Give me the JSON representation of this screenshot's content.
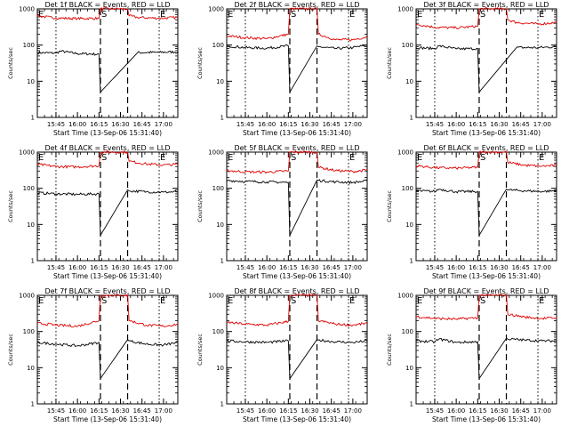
{
  "figure": {
    "colors": {
      "background": "#ffffff",
      "events": "#000000",
      "lld": "#e00000",
      "axes": "#000000"
    }
  },
  "chart_data": [
    {
      "type": "line",
      "title": "Det 1f BLACK = Events, RED = LLD",
      "xlabel": "Start Time (13-Sep-06 15:31:40)",
      "ylabel": "Counts/sec",
      "yscale": "log",
      "xlim": [
        "15:32",
        "17:10"
      ],
      "ylim": [
        1,
        1000
      ],
      "xticks": [
        "15:45",
        "16:00",
        "16:15",
        "16:30",
        "16:45",
        "17:00"
      ],
      "yticks": [
        "1",
        "10",
        "100",
        "1000"
      ],
      "markers": [
        "E",
        "S",
        "E"
      ],
      "grid": false,
      "series": [
        {
          "values": [
            [
              15.533,
              62
            ],
            [
              15.75,
              60
            ],
            [
              15.8,
              68
            ],
            [
              16.0,
              58
            ],
            [
              16.25,
              56
            ],
            [
              16.267,
              5
            ],
            [
              16.7,
              62
            ],
            [
              16.95,
              63
            ],
            [
              17.167,
              65
            ]
          ]
        },
        {
          "values": [
            [
              15.533,
              640
            ],
            [
              15.75,
              560
            ],
            [
              16.0,
              540
            ],
            [
              16.25,
              550
            ],
            [
              16.267,
              1000
            ],
            [
              16.583,
              1000
            ],
            [
              16.6,
              640
            ],
            [
              16.7,
              580
            ],
            [
              16.95,
              550
            ],
            [
              17.167,
              580
            ]
          ]
        }
      ]
    },
    {
      "type": "line",
      "title": "Det 2f BLACK = Events, RED = LLD",
      "xlabel": "Start Time (13-Sep-06 15:31:40)",
      "ylabel": "Counts/sec",
      "yscale": "log",
      "xlim": [
        "15:32",
        "17:10"
      ],
      "ylim": [
        1,
        1000
      ],
      "xticks": [
        "15:45",
        "16:00",
        "16:15",
        "16:30",
        "16:45",
        "17:00"
      ],
      "yticks": [
        "1",
        "10",
        "100",
        "1000"
      ],
      "markers": [
        "E",
        "S",
        "E"
      ],
      "grid": false,
      "series": [
        {
          "values": [
            [
              15.533,
              95
            ],
            [
              15.75,
              85
            ],
            [
              16.0,
              82
            ],
            [
              16.25,
              95
            ],
            [
              16.267,
              5
            ],
            [
              16.583,
              95
            ],
            [
              16.6,
              90
            ],
            [
              16.8,
              80
            ],
            [
              17.0,
              85
            ],
            [
              17.167,
              100
            ]
          ]
        },
        {
          "values": [
            [
              15.533,
              180
            ],
            [
              15.75,
              160
            ],
            [
              16.0,
              150
            ],
            [
              16.25,
              200
            ],
            [
              16.267,
              1000
            ],
            [
              16.583,
              1000
            ],
            [
              16.6,
              200
            ],
            [
              16.8,
              140
            ],
            [
              17.0,
              140
            ],
            [
              17.167,
              170
            ]
          ]
        }
      ]
    },
    {
      "type": "line",
      "title": "Det 3f BLACK = Events, RED = LLD",
      "xlabel": "Start Time (13-Sep-06 15:31:40)",
      "ylabel": "Counts/sec",
      "yscale": "log",
      "xlim": [
        "15:32",
        "17:10"
      ],
      "ylim": [
        1,
        1000
      ],
      "xticks": [
        "15:45",
        "16:00",
        "16:15",
        "16:30",
        "16:45",
        "17:00"
      ],
      "yticks": [
        "1",
        "10",
        "100",
        "1000"
      ],
      "markers": [
        "E",
        "S",
        "E"
      ],
      "grid": false,
      "series": [
        {
          "values": [
            [
              15.533,
              85
            ],
            [
              15.75,
              80
            ],
            [
              15.8,
              95
            ],
            [
              16.0,
              78
            ],
            [
              16.25,
              80
            ],
            [
              16.267,
              5
            ],
            [
              16.7,
              85
            ],
            [
              16.95,
              85
            ],
            [
              17.167,
              90
            ]
          ]
        },
        {
          "values": [
            [
              15.533,
              380
            ],
            [
              15.75,
              310
            ],
            [
              16.0,
              300
            ],
            [
              16.25,
              330
            ],
            [
              16.267,
              1000
            ],
            [
              16.583,
              1000
            ],
            [
              16.6,
              500
            ],
            [
              16.7,
              420
            ],
            [
              16.95,
              380
            ],
            [
              17.167,
              420
            ]
          ]
        }
      ]
    },
    {
      "type": "line",
      "title": "Det 4f BLACK = Events, RED = LLD",
      "xlabel": "Start Time (13-Sep-06 15:31:40)",
      "ylabel": "Counts/sec",
      "yscale": "log",
      "xlim": [
        "15:32",
        "17:10"
      ],
      "ylim": [
        1,
        1000
      ],
      "xticks": [
        "15:45",
        "16:00",
        "16:15",
        "16:30",
        "16:45",
        "17:00"
      ],
      "yticks": [
        "1",
        "10",
        "100",
        "1000"
      ],
      "markers": [
        "E",
        "S",
        "E"
      ],
      "grid": false,
      "series": [
        {
          "values": [
            [
              15.533,
              75
            ],
            [
              15.75,
              70
            ],
            [
              16.0,
              68
            ],
            [
              16.25,
              70
            ],
            [
              16.267,
              5
            ],
            [
              16.583,
              90
            ],
            [
              16.6,
              85
            ],
            [
              16.8,
              80
            ],
            [
              17.0,
              78
            ],
            [
              17.167,
              80
            ]
          ]
        },
        {
          "values": [
            [
              15.533,
              460
            ],
            [
              15.75,
              400
            ],
            [
              16.0,
              390
            ],
            [
              16.25,
              420
            ],
            [
              16.267,
              1000
            ],
            [
              16.583,
              1000
            ],
            [
              16.6,
              560
            ],
            [
              16.8,
              470
            ],
            [
              17.0,
              440
            ],
            [
              17.167,
              460
            ]
          ]
        }
      ]
    },
    {
      "type": "line",
      "title": "Det 5f BLACK = Events, RED = LLD",
      "xlabel": "Start Time (13-Sep-06 15:31:40)",
      "ylabel": "Counts/sec",
      "yscale": "log",
      "xlim": [
        "15:32",
        "17:10"
      ],
      "ylim": [
        1,
        1000
      ],
      "xticks": [
        "15:45",
        "16:00",
        "16:15",
        "16:30",
        "16:45",
        "17:00"
      ],
      "yticks": [
        "1",
        "10",
        "100",
        "1000"
      ],
      "markers": [
        "E",
        "S",
        "E"
      ],
      "grid": false,
      "series": [
        {
          "values": [
            [
              15.533,
              165
            ],
            [
              15.75,
              155
            ],
            [
              16.0,
              150
            ],
            [
              16.25,
              145
            ],
            [
              16.267,
              5
            ],
            [
              16.583,
              170
            ],
            [
              16.6,
              165
            ],
            [
              16.8,
              150
            ],
            [
              17.0,
              145
            ],
            [
              17.167,
              160
            ]
          ]
        },
        {
          "values": [
            [
              15.533,
              310
            ],
            [
              15.75,
              285
            ],
            [
              16.0,
              280
            ],
            [
              16.25,
              300
            ],
            [
              16.267,
              1000
            ],
            [
              16.583,
              1000
            ],
            [
              16.6,
              380
            ],
            [
              16.8,
              310
            ],
            [
              17.0,
              290
            ],
            [
              17.167,
              320
            ]
          ]
        }
      ]
    },
    {
      "type": "line",
      "title": "Det 6f BLACK = Events, RED = LLD",
      "xlabel": "Start Time (13-Sep-06 15:31:40)",
      "ylabel": "Counts/sec",
      "yscale": "log",
      "xlim": [
        "15:32",
        "17:10"
      ],
      "ylim": [
        1,
        1000
      ],
      "xticks": [
        "15:45",
        "16:00",
        "16:15",
        "16:30",
        "16:45",
        "17:00"
      ],
      "yticks": [
        "1",
        "10",
        "100",
        "1000"
      ],
      "markers": [
        "E",
        "S",
        "E"
      ],
      "grid": false,
      "series": [
        {
          "values": [
            [
              15.533,
              85
            ],
            [
              15.75,
              82
            ],
            [
              15.8,
              95
            ],
            [
              16.0,
              80
            ],
            [
              16.25,
              82
            ],
            [
              16.267,
              5
            ],
            [
              16.583,
              95
            ],
            [
              16.6,
              90
            ],
            [
              16.8,
              85
            ],
            [
              17.0,
              82
            ],
            [
              17.167,
              85
            ]
          ]
        },
        {
          "values": [
            [
              15.533,
              420
            ],
            [
              15.75,
              370
            ],
            [
              16.0,
              360
            ],
            [
              16.25,
              380
            ],
            [
              16.267,
              1000
            ],
            [
              16.583,
              1000
            ],
            [
              16.6,
              520
            ],
            [
              16.8,
              430
            ],
            [
              17.0,
              410
            ],
            [
              17.167,
              430
            ]
          ]
        }
      ]
    },
    {
      "type": "line",
      "title": "Det 7f BLACK = Events, RED = LLD",
      "xlabel": "Start Time (13-Sep-06 15:31:40)",
      "ylabel": "Counts/sec",
      "yscale": "log",
      "xlim": [
        "15:32",
        "17:10"
      ],
      "ylim": [
        1,
        1000
      ],
      "xticks": [
        "15:45",
        "16:00",
        "16:15",
        "16:30",
        "16:45",
        "17:00"
      ],
      "yticks": [
        "1",
        "10",
        "100",
        "1000"
      ],
      "markers": [
        "E",
        "S",
        "E"
      ],
      "grid": false,
      "series": [
        {
          "values": [
            [
              15.533,
              50
            ],
            [
              15.75,
              45
            ],
            [
              16.0,
              40
            ],
            [
              16.25,
              50
            ],
            [
              16.267,
              5
            ],
            [
              16.583,
              60
            ],
            [
              16.6,
              55
            ],
            [
              16.8,
              45
            ],
            [
              17.0,
              42
            ],
            [
              17.167,
              50
            ]
          ]
        },
        {
          "values": [
            [
              15.533,
              170
            ],
            [
              15.75,
              150
            ],
            [
              16.0,
              140
            ],
            [
              16.25,
              200
            ],
            [
              16.267,
              1000
            ],
            [
              16.583,
              1000
            ],
            [
              16.6,
              200
            ],
            [
              16.8,
              150
            ],
            [
              17.0,
              140
            ],
            [
              17.167,
              160
            ]
          ]
        }
      ]
    },
    {
      "type": "line",
      "title": "Det 8f BLACK = Events, RED = LLD",
      "xlabel": "Start Time (13-Sep-06 15:31:40)",
      "ylabel": "Counts/sec",
      "yscale": "log",
      "xlim": [
        "15:32",
        "17:10"
      ],
      "ylim": [
        1,
        1000
      ],
      "xticks": [
        "15:45",
        "16:00",
        "16:15",
        "16:30",
        "16:45",
        "17:00"
      ],
      "yticks": [
        "1",
        "10",
        "100",
        "1000"
      ],
      "markers": [
        "E",
        "S",
        "E"
      ],
      "grid": false,
      "series": [
        {
          "values": [
            [
              15.533,
              55
            ],
            [
              15.75,
              52
            ],
            [
              16.0,
              50
            ],
            [
              16.25,
              55
            ],
            [
              16.267,
              5
            ],
            [
              16.583,
              60
            ],
            [
              16.6,
              58
            ],
            [
              16.8,
              52
            ],
            [
              17.0,
              50
            ],
            [
              17.167,
              55
            ]
          ]
        },
        {
          "values": [
            [
              15.533,
              180
            ],
            [
              15.75,
              160
            ],
            [
              16.0,
              150
            ],
            [
              16.25,
              190
            ],
            [
              16.267,
              1000
            ],
            [
              16.583,
              1000
            ],
            [
              16.6,
              200
            ],
            [
              16.8,
              160
            ],
            [
              17.0,
              150
            ],
            [
              17.167,
              170
            ]
          ]
        }
      ]
    },
    {
      "type": "line",
      "title": "Det 9f BLACK = Events, RED = LLD",
      "xlabel": "Start Time (13-Sep-06 15:31:40)",
      "ylabel": "Counts/sec",
      "yscale": "log",
      "xlim": [
        "15:32",
        "17:10"
      ],
      "ylim": [
        1,
        1000
      ],
      "xticks": [
        "15:45",
        "16:00",
        "16:15",
        "16:30",
        "16:45",
        "17:00"
      ],
      "yticks": [
        "1",
        "10",
        "100",
        "1000"
      ],
      "markers": [
        "E",
        "S",
        "E"
      ],
      "grid": false,
      "series": [
        {
          "values": [
            [
              15.533,
              55
            ],
            [
              15.75,
              52
            ],
            [
              15.8,
              62
            ],
            [
              16.0,
              50
            ],
            [
              16.25,
              52
            ],
            [
              16.267,
              5
            ],
            [
              16.583,
              65
            ],
            [
              16.6,
              62
            ],
            [
              16.8,
              58
            ],
            [
              17.0,
              55
            ],
            [
              17.167,
              55
            ]
          ]
        },
        {
          "values": [
            [
              15.533,
              260
            ],
            [
              15.75,
              230
            ],
            [
              16.0,
              220
            ],
            [
              16.25,
              240
            ],
            [
              16.267,
              1000
            ],
            [
              16.583,
              1000
            ],
            [
              16.6,
              300
            ],
            [
              16.8,
              250
            ],
            [
              17.0,
              230
            ],
            [
              17.167,
              240
            ]
          ]
        }
      ]
    }
  ]
}
